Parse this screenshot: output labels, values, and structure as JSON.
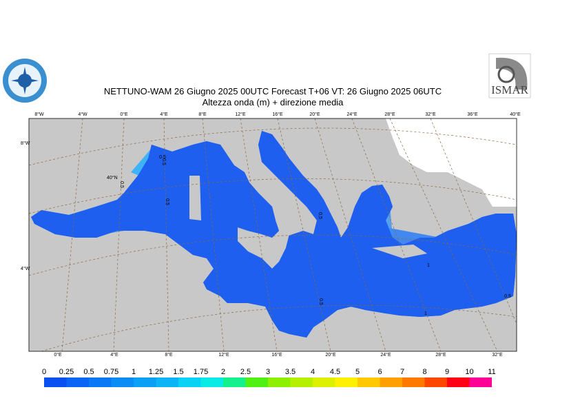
{
  "header": {
    "title": "NETTUNO-WAM 26   Giugno  2025 00UTC Forecast T+06 VT: 26   Giugno  2025 06UTC",
    "subtitle": "Altezza onda (m) + direzione media",
    "logo_right": "ISMAR"
  },
  "map": {
    "top_labels": [
      "8°W",
      "4°W",
      "0°E",
      "4°E",
      "8°E",
      "12°E",
      "16°E",
      "20°E",
      "24°E",
      "28°E",
      "32°E",
      "36°E",
      "40°E"
    ],
    "left_labels": [
      "8°W",
      "40°N",
      "4°W"
    ],
    "bottom_labels": [
      "0°E",
      "4°E",
      "8°E",
      "12°E",
      "16°E",
      "20°E",
      "24°E",
      "28°E",
      "32°E"
    ],
    "contour_labels": [
      "0.5",
      "0.5",
      "0.5",
      "0.5",
      "0.5",
      "0.5",
      "1",
      "1",
      "0.5"
    ]
  },
  "colorbar": {
    "levels": [
      "0",
      "0.25",
      "0.5",
      "0.75",
      "1",
      "1.25",
      "1.5",
      "1.75",
      "2",
      "2.5",
      "3",
      "3.5",
      "4",
      "4.5",
      "5",
      "6",
      "7",
      "8",
      "9",
      "10",
      "11"
    ],
    "colors": [
      "#0a50f0",
      "#0a64f5",
      "#0a78f5",
      "#0a8cf5",
      "#0aa0f5",
      "#0ab4f5",
      "#0ad2f5",
      "#0aebe6",
      "#14f08c",
      "#50f014",
      "#8cf000",
      "#b4f000",
      "#dcf000",
      "#fff000",
      "#ffc800",
      "#ffa000",
      "#ff7800",
      "#ff4600",
      "#ff0014",
      "#ff0096"
    ]
  }
}
